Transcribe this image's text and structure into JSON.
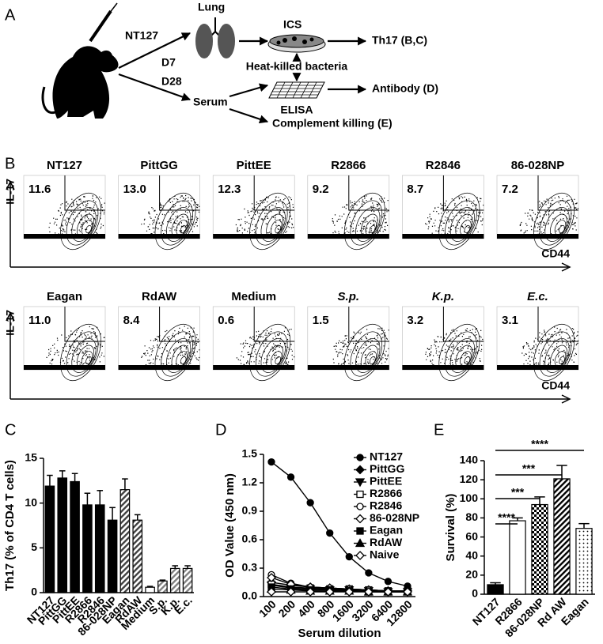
{
  "panel_a": {
    "label": "A",
    "lung": "Lung",
    "ics": "ICS",
    "strain": "NT127",
    "day7": "D7",
    "day28": "D28",
    "th17": "Th17 (B,C)",
    "bacteria": "Heat-killed bacteria",
    "serum": "Serum",
    "elisa": "ELISA",
    "antibody": "Antibody (D)",
    "complement": "Complement killing (E)"
  },
  "panel_b": {
    "label": "B",
    "y_label": "IL-17",
    "x_label": "CD44",
    "rows": [
      [
        {
          "title": "NT127",
          "percent": "11.6"
        },
        {
          "title": "PittGG",
          "percent": "13.0"
        },
        {
          "title": "PittEE",
          "percent": "12.3"
        },
        {
          "title": "R2866",
          "percent": "9.2"
        },
        {
          "title": "R2846",
          "percent": "8.7"
        },
        {
          "title": "86-028NP",
          "percent": "7.2"
        }
      ],
      [
        {
          "title": "Eagan",
          "percent": "11.0"
        },
        {
          "title": "RdAW",
          "percent": "8.4"
        },
        {
          "title": "Medium",
          "percent": "0.6"
        },
        {
          "title": "S.p.",
          "percent": "1.5",
          "italic": true
        },
        {
          "title": "K.p.",
          "percent": "3.2",
          "italic": true
        },
        {
          "title": "E.c.",
          "percent": "3.1",
          "italic": true
        }
      ]
    ]
  },
  "chart_data": [
    {
      "type": "bar",
      "panel": "C",
      "y_label": "Th17 (% of CD4 T cells)",
      "categories": [
        "NT127",
        "PittGG",
        "PittEE",
        "R2866",
        "R2846",
        "86-028NP",
        "Eagan",
        "RdAW",
        "Medium",
        "S.p.",
        "K.p.",
        "E.c."
      ],
      "values": [
        11.9,
        12.8,
        12.4,
        9.8,
        9.8,
        8.1,
        11.5,
        8.1,
        0.6,
        1.3,
        2.7,
        2.7
      ],
      "errors": [
        1.2,
        0.8,
        0.9,
        1.3,
        1.6,
        1.4,
        1.2,
        0.6,
        0.1,
        0.1,
        0.3,
        0.3
      ],
      "colors": [
        "#000000",
        "#000000",
        "#000000",
        "#000000",
        "#000000",
        "#000000",
        "#999999",
        "#999999",
        "#ffffff",
        "#cccccc",
        "#cccccc",
        "#cccccc"
      ],
      "patterns": [
        "solid",
        "solid",
        "solid",
        "solid",
        "solid",
        "solid",
        "hatch",
        "hatch",
        "solid",
        "hatch",
        "hatch",
        "hatch"
      ],
      "ylim": [
        0,
        15
      ],
      "yticks": [
        0,
        5,
        10,
        15
      ]
    },
    {
      "type": "line",
      "panel": "D",
      "y_label": "OD Value (450 nm)",
      "x_label": "Serum dilution",
      "categories": [
        100,
        200,
        400,
        800,
        1600,
        3200,
        6400,
        12800
      ],
      "legend": "top-right",
      "series": [
        {
          "name": "NT127",
          "marker": "circle",
          "color": "#000000",
          "values": [
            1.42,
            1.26,
            0.99,
            0.67,
            0.42,
            0.25,
            0.16,
            0.11
          ]
        },
        {
          "name": "PittGG",
          "marker": "diamond",
          "color": "#000000",
          "values": [
            0.15,
            0.12,
            0.1,
            0.09,
            0.08,
            0.07,
            0.06,
            0.06
          ]
        },
        {
          "name": "PittEE",
          "marker": "triangle-down",
          "color": "#000000",
          "values": [
            0.12,
            0.09,
            0.08,
            0.07,
            0.07,
            0.06,
            0.05,
            0.05
          ]
        },
        {
          "name": "R2866",
          "marker": "square-open",
          "color": "#000000",
          "values": [
            0.13,
            0.1,
            0.09,
            0.08,
            0.08,
            0.07,
            0.06,
            0.06
          ]
        },
        {
          "name": "R2846",
          "marker": "circle-open",
          "color": "#000000",
          "values": [
            0.23,
            0.14,
            0.1,
            0.09,
            0.08,
            0.07,
            0.06,
            0.06
          ]
        },
        {
          "name": "86-028NP",
          "marker": "diamond-open",
          "color": "#000000",
          "values": [
            0.2,
            0.13,
            0.1,
            0.09,
            0.08,
            0.07,
            0.06,
            0.06
          ]
        },
        {
          "name": "Eagan",
          "marker": "square",
          "color": "#000000",
          "values": [
            0.1,
            0.08,
            0.07,
            0.07,
            0.06,
            0.05,
            0.05,
            0.05
          ]
        },
        {
          "name": "RdAW",
          "marker": "triangle",
          "color": "#000000",
          "values": [
            0.08,
            0.07,
            0.06,
            0.06,
            0.06,
            0.05,
            0.05,
            0.05
          ]
        },
        {
          "name": "Naive",
          "marker": "diamond-open",
          "color": "#000000",
          "values": [
            0.05,
            0.05,
            0.05,
            0.05,
            0.05,
            0.05,
            0.05,
            0.05
          ]
        }
      ],
      "ylim": [
        0,
        1.5
      ],
      "yticks": [
        {
          "value": 0,
          "label": "0.0"
        },
        0.3,
        0.6,
        0.9,
        1.2,
        1.5
      ]
    },
    {
      "type": "bar",
      "panel": "E",
      "y_label": "Survival (%)",
      "categories": [
        "NT127",
        "R2866",
        "86-028NP",
        "Rd AW",
        "Eagan"
      ],
      "values": [
        10,
        77,
        94,
        121,
        69
      ],
      "errors": [
        2,
        3,
        8,
        14,
        5
      ],
      "colors": [
        "#000000",
        "#ffffff",
        "#000000",
        "#000000",
        "#000000"
      ],
      "patterns": [
        "solid",
        "solid",
        "checker",
        "hatch",
        "dots"
      ],
      "ylim": [
        0,
        140
      ],
      "yticks": [
        0,
        20,
        40,
        60,
        80,
        100,
        120,
        140
      ],
      "annotations": [
        {
          "text": "****",
          "from": "NT127",
          "to": "R2866"
        },
        {
          "text": "***",
          "from": "NT127",
          "to": "86-028NP"
        },
        {
          "text": "***",
          "from": "NT127",
          "to": "Rd AW"
        },
        {
          "text": "****",
          "from": "NT127",
          "to": "Eagan"
        }
      ]
    }
  ]
}
